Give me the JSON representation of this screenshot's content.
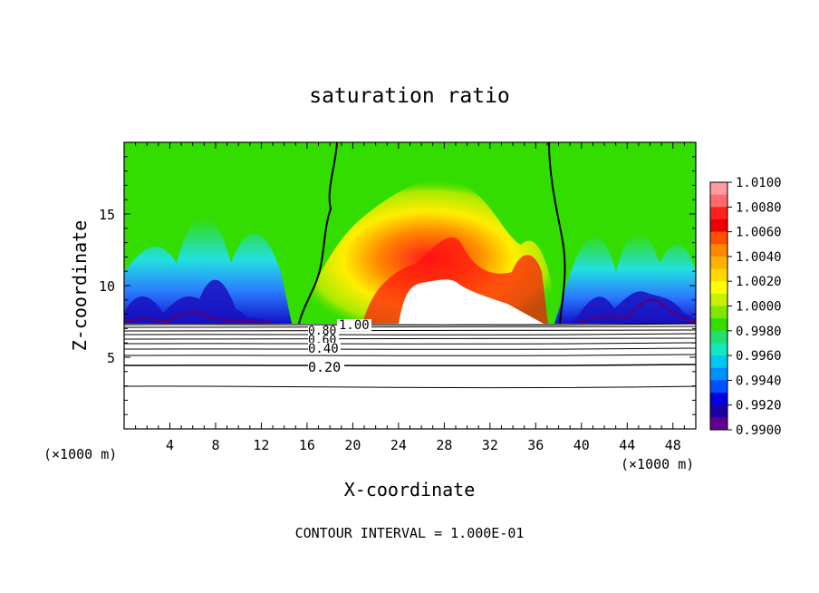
{
  "chart_data": {
    "type": "heatmap",
    "title": "saturation ratio",
    "xlabel": "X-coordinate",
    "ylabel": "Z-coordinate",
    "x_unit_left": "(×1000 m)",
    "x_unit_right": "(×1000 m)",
    "footer": "CONTOUR INTERVAL = 1.000E-01",
    "xlim": [
      0,
      50
    ],
    "ylim": [
      0,
      20
    ],
    "x_ticks": [
      4,
      8,
      12,
      16,
      20,
      24,
      28,
      32,
      36,
      40,
      44,
      48
    ],
    "x_tick_labels": [
      "4",
      "8",
      "12",
      "16",
      "20",
      "24",
      "28",
      "32",
      "36",
      "40",
      "44",
      "48"
    ],
    "y_ticks": [
      5,
      10,
      15
    ],
    "y_tick_labels": [
      "5",
      "10",
      "15"
    ],
    "colorbar": {
      "min": 0.99,
      "max": 1.01,
      "labels": [
        "1.0100",
        "1.0080",
        "1.0060",
        "1.0040",
        "1.0020",
        "1.0000",
        "0.9980",
        "0.9960",
        "0.9940",
        "0.9920",
        "0.9900"
      ]
    },
    "contour_labels": [
      "1.00",
      "0.80",
      "0.60",
      "0.40",
      "0.20"
    ],
    "contour_levels": [
      0.2,
      0.4,
      0.6,
      0.8,
      1.0
    ]
  }
}
